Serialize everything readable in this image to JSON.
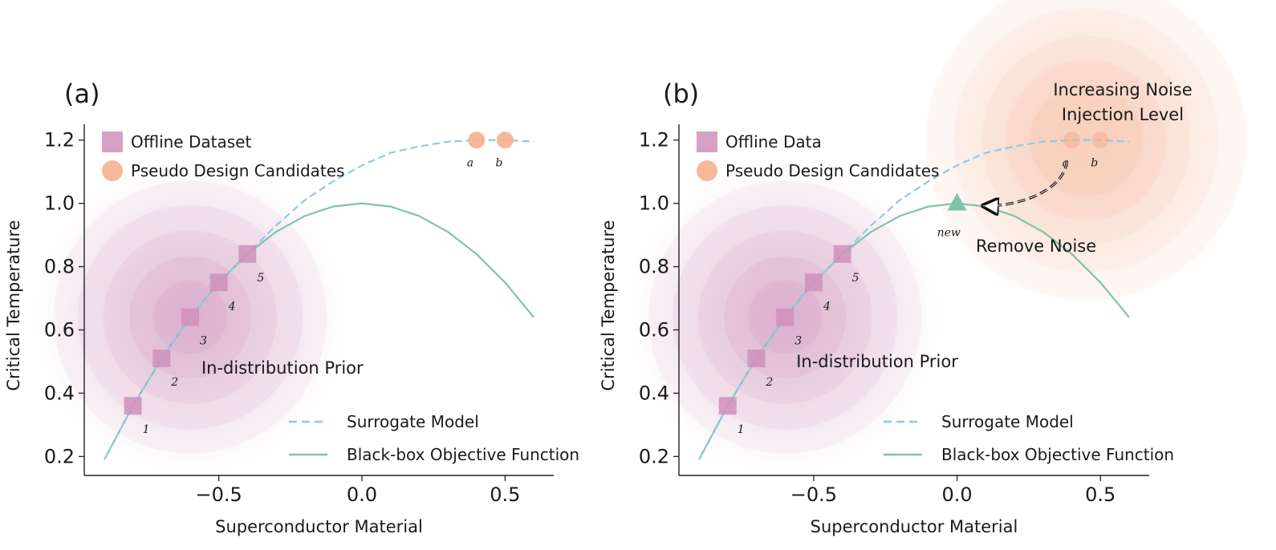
{
  "chart_data": [
    {
      "type": "line",
      "panel_label": "(a)",
      "xlabel": "Superconductor Material",
      "ylabel": "Critical Temperature",
      "xlim": [
        -0.97,
        0.67
      ],
      "ylim": [
        0.14,
        1.25
      ],
      "xticks": [
        -0.5,
        0.0,
        0.5
      ],
      "xtick_labels": [
        "−0.5",
        "0.0",
        "0.5"
      ],
      "yticks": [
        0.2,
        0.4,
        0.6,
        0.8,
        1.0,
        1.2
      ],
      "ytick_labels": [
        "0.2",
        "0.4",
        "0.6",
        "0.8",
        "1.0",
        "1.2"
      ],
      "grid": false,
      "series": [
        {
          "name": "Surrogate Model",
          "style": "dashed",
          "color": "#8ec9ea",
          "x": [
            -0.9,
            -0.8,
            -0.7,
            -0.6,
            -0.5,
            -0.4,
            -0.3,
            -0.2,
            -0.1,
            0.0,
            0.1,
            0.2,
            0.3,
            0.4,
            0.5,
            0.6
          ],
          "y": [
            0.19,
            0.36,
            0.51,
            0.64,
            0.75,
            0.84,
            0.93,
            1.01,
            1.07,
            1.12,
            1.16,
            1.18,
            1.195,
            1.2,
            1.2,
            1.195
          ]
        },
        {
          "name": "Black-box Objective Function",
          "style": "solid",
          "color": "#7fc4a9",
          "x": [
            -0.9,
            -0.8,
            -0.7,
            -0.6,
            -0.5,
            -0.4,
            -0.3,
            -0.2,
            -0.1,
            0.0,
            0.1,
            0.2,
            0.3,
            0.4,
            0.5,
            0.6
          ],
          "y": [
            0.19,
            0.36,
            0.51,
            0.64,
            0.75,
            0.84,
            0.91,
            0.96,
            0.99,
            1.0,
            0.99,
            0.96,
            0.91,
            0.84,
            0.75,
            0.64
          ]
        }
      ],
      "offline_points": {
        "legend": "Offline Dataset",
        "color": "#d08fbb",
        "x": [
          -0.8,
          -0.7,
          -0.6,
          -0.5,
          -0.4
        ],
        "y": [
          0.36,
          0.51,
          0.64,
          0.75,
          0.84
        ],
        "labels": [
          "1",
          "2",
          "3",
          "4",
          "5"
        ]
      },
      "candidates": {
        "legend": "Pseudo Design Candidates",
        "color": "#f6b08f",
        "x": [
          0.4,
          0.5
        ],
        "y": [
          1.2,
          1.2
        ],
        "labels": [
          "a",
          "b"
        ]
      },
      "prior": {
        "label": "In-distribution Prior",
        "center": [
          -0.6,
          0.64
        ],
        "color": "#c77fae"
      },
      "legend_position": "top-left / lower-right",
      "annotations": []
    },
    {
      "type": "line",
      "panel_label": "(b)",
      "xlabel": "Superconductor Material",
      "ylabel": "Critical Temperature",
      "xlim": [
        -0.97,
        0.67
      ],
      "ylim": [
        0.14,
        1.25
      ],
      "xticks": [
        -0.5,
        0.0,
        0.5
      ],
      "xtick_labels": [
        "−0.5",
        "0.0",
        "0.5"
      ],
      "yticks": [
        0.2,
        0.4,
        0.6,
        0.8,
        1.0,
        1.2
      ],
      "ytick_labels": [
        "0.2",
        "0.4",
        "0.6",
        "0.8",
        "1.0",
        "1.2"
      ],
      "grid": false,
      "series": [
        {
          "name": "Surrogate Model",
          "style": "dashed",
          "color": "#8ec9ea",
          "x": [
            -0.9,
            -0.8,
            -0.7,
            -0.6,
            -0.5,
            -0.4,
            -0.3,
            -0.2,
            -0.1,
            0.0,
            0.1,
            0.2,
            0.3,
            0.4,
            0.5,
            0.6
          ],
          "y": [
            0.19,
            0.36,
            0.51,
            0.64,
            0.75,
            0.84,
            0.93,
            1.01,
            1.07,
            1.12,
            1.16,
            1.18,
            1.195,
            1.2,
            1.2,
            1.195
          ]
        },
        {
          "name": "Black-box Objective Function",
          "style": "solid",
          "color": "#7fc4a9",
          "x": [
            -0.9,
            -0.8,
            -0.7,
            -0.6,
            -0.5,
            -0.4,
            -0.3,
            -0.2,
            -0.1,
            0.0,
            0.1,
            0.2,
            0.3,
            0.4,
            0.5,
            0.6
          ],
          "y": [
            0.19,
            0.36,
            0.51,
            0.64,
            0.75,
            0.84,
            0.91,
            0.96,
            0.99,
            1.0,
            0.99,
            0.96,
            0.91,
            0.84,
            0.75,
            0.64
          ]
        }
      ],
      "offline_points": {
        "legend": "Offline Data",
        "color": "#d08fbb",
        "x": [
          -0.8,
          -0.7,
          -0.6,
          -0.5,
          -0.4
        ],
        "y": [
          0.36,
          0.51,
          0.64,
          0.75,
          0.84
        ],
        "labels": [
          "1",
          "2",
          "3",
          "4",
          "5"
        ]
      },
      "candidates": {
        "legend": "Pseudo Design Candidates",
        "color": "#f6b08f",
        "x": [
          0.4,
          0.5
        ],
        "y": [
          1.2,
          1.2
        ],
        "labels": [
          "a",
          "b"
        ]
      },
      "new_point": {
        "x": 0.0,
        "y": 1.0,
        "label": "new",
        "color": "#7fc4a9"
      },
      "prior": {
        "label": "In-distribution Prior",
        "center": [
          -0.6,
          0.64
        ],
        "color": "#c77fae"
      },
      "noise": {
        "label_line1": "Increasing Noise",
        "label_line2": "Injection Level",
        "center": [
          0.45,
          1.2
        ],
        "color": "#f6b08f"
      },
      "legend_position": "top-left / lower-right",
      "annotations": [
        "Remove Noise"
      ]
    }
  ]
}
